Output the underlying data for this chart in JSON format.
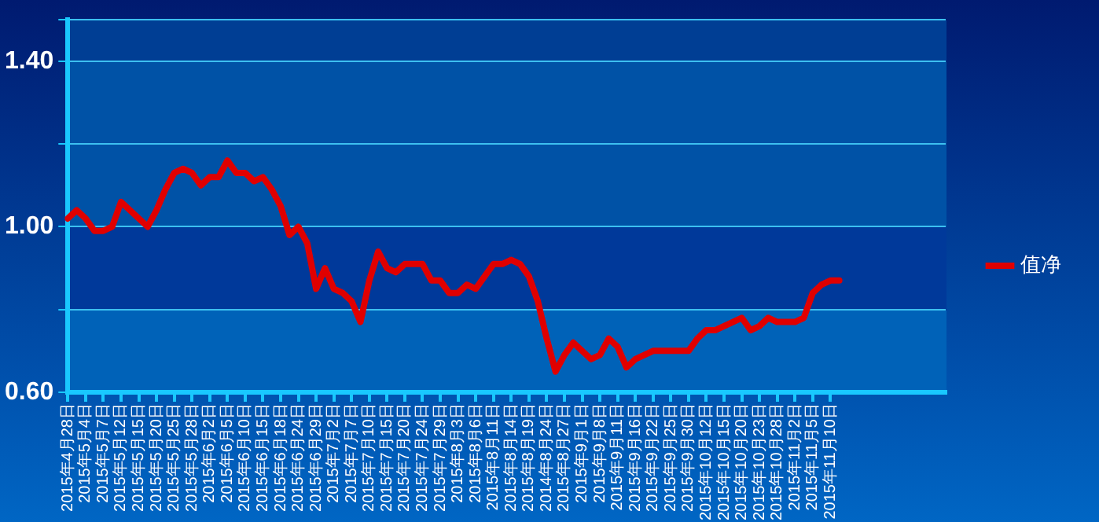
{
  "chart_data": {
    "type": "line",
    "categories": [
      "2015年4月28日",
      null,
      "2015年5月4日",
      null,
      "2015年5月7日",
      null,
      "2015年5月12日",
      null,
      "2015年5月15日",
      null,
      "2015年5月20日",
      null,
      "2015年5月25日",
      null,
      "2015年5月28日",
      null,
      "2015年6月2日",
      null,
      "2015年6月5日",
      null,
      "2015年6月10日",
      null,
      "2015年6月15日",
      null,
      "2015年6月18日",
      null,
      "2015年6月24日",
      null,
      "2015年6月29日",
      null,
      "2015年7月2日",
      null,
      "2015年7月7日",
      null,
      "2015年7月10日",
      null,
      "2015年7月15日",
      null,
      "2015年7月20日",
      null,
      "2015年7月24日",
      null,
      "2015年7月29日",
      null,
      "2015年8月3日",
      null,
      "2015年8月6日",
      null,
      "2015年8月11日",
      null,
      "2015年8月14日",
      null,
      "2015年8月19日",
      null,
      "2014年8月24日",
      null,
      "2015年8月27日",
      null,
      "2015年9月1日",
      null,
      "2015年9月8日",
      null,
      "2015年9月11日",
      null,
      "2015年9月16日",
      null,
      "2015年9月22日",
      null,
      "2015年9月25日",
      null,
      "2015年9月30日",
      null,
      "2015年10月12日",
      null,
      "2015年10月15日",
      null,
      "2015年10月20日",
      null,
      "2015年10月23日",
      null,
      "2015年10月28日",
      null,
      "2015年11月2日",
      null,
      "2015年11月5日",
      null,
      "2015年11月10日",
      null,
      null,
      null,
      null,
      null,
      null,
      null,
      null,
      null,
      null,
      null,
      null,
      null
    ],
    "series": [
      {
        "name": "值净",
        "color": "#e00000",
        "values": [
          1.02,
          1.04,
          1.02,
          0.99,
          0.99,
          1.0,
          1.06,
          1.04,
          1.02,
          1.0,
          1.04,
          1.09,
          1.13,
          1.14,
          1.13,
          1.1,
          1.12,
          1.12,
          1.16,
          1.13,
          1.13,
          1.11,
          1.12,
          1.09,
          1.05,
          0.98,
          1.0,
          0.96,
          0.85,
          0.9,
          0.85,
          0.84,
          0.82,
          0.77,
          0.87,
          0.94,
          0.9,
          0.89,
          0.91,
          0.91,
          0.91,
          0.87,
          0.87,
          0.84,
          0.84,
          0.86,
          0.85,
          0.88,
          0.91,
          0.91,
          0.92,
          0.91,
          0.88,
          0.82,
          0.73,
          0.65,
          0.69,
          0.72,
          0.7,
          0.68,
          0.69,
          0.73,
          0.71,
          0.66,
          0.68,
          0.69,
          0.7,
          0.7,
          0.7,
          0.7,
          0.7,
          0.73,
          0.75,
          0.75,
          0.76,
          0.77,
          0.78,
          0.75,
          0.76,
          0.78,
          0.77,
          0.77,
          0.77,
          0.78,
          0.84,
          0.86,
          0.87,
          0.87,
          null,
          null,
          null,
          null,
          null,
          null,
          null,
          null,
          null,
          null,
          null,
          null
        ]
      }
    ],
    "ylim": [
      0.6,
      1.5
    ],
    "yticks": [
      {
        "value": 0.6,
        "label": "0.60"
      },
      {
        "value": 0.8,
        "label": null
      },
      {
        "value": 1.0,
        "label": "1.00"
      },
      {
        "value": 1.2,
        "label": null
      },
      {
        "value": 1.4,
        "label": "1.40"
      },
      {
        "value": 1.5,
        "label": null
      }
    ],
    "grid": "y",
    "legend": "right",
    "marker": "none",
    "line_style": "solid"
  }
}
